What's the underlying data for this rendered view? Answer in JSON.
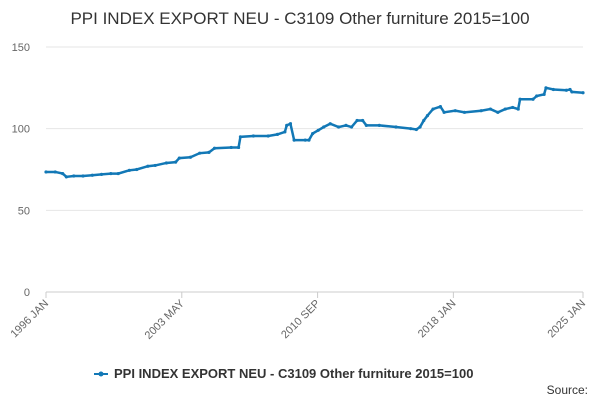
{
  "chart_data": {
    "type": "line",
    "title": "PPI INDEX EXPORT NEU - C3109 Other furniture 2015=100",
    "source": "Source:",
    "x": [
      1996.0,
      1996.5,
      1996.9,
      1997.1,
      1997.5,
      1998.0,
      1998.5,
      1999.0,
      1999.5,
      1999.9,
      2000.5,
      2000.9,
      2001.5,
      2001.9,
      2002.5,
      2003.0,
      2003.2,
      2003.8,
      2004.3,
      2004.8,
      2005.1,
      2006.0,
      2006.4,
      2006.5,
      2007.2,
      2008.0,
      2008.5,
      2008.9,
      2009.0,
      2009.2,
      2009.4,
      2010.0,
      2010.2,
      2010.4,
      2010.7,
      2011.0,
      2011.35,
      2011.8,
      2012.2,
      2012.5,
      2012.8,
      2013.1,
      2013.3,
      2014.0,
      2014.9,
      2015.7,
      2016.0,
      2016.2,
      2016.4,
      2016.6,
      2016.9,
      2017.3,
      2017.5,
      2018.1,
      2018.6,
      2019.5,
      2020.0,
      2020.4,
      2020.8,
      2021.2,
      2021.5,
      2021.6,
      2022.3,
      2022.5,
      2022.9,
      2023.0,
      2023.4,
      2024.1,
      2024.3,
      2024.4,
      2025.0
    ],
    "series": [
      {
        "name": "PPI INDEX EXPORT NEU - C3109 Other furniture 2015=100",
        "color": "#1278b6",
        "values": [
          73.5,
          73.5,
          72.5,
          70.5,
          71,
          71,
          71.5,
          72,
          72.5,
          72.5,
          74.5,
          75,
          77,
          77.5,
          79,
          79.5,
          82,
          82.5,
          85,
          85.5,
          88,
          88.5,
          88.5,
          95,
          95.5,
          95.5,
          96.5,
          98,
          102,
          103,
          93,
          93,
          93,
          97,
          99,
          101,
          103,
          101,
          102,
          101,
          105,
          105,
          102,
          102,
          101,
          100,
          99.5,
          101,
          105,
          108,
          112,
          113.5,
          110,
          111,
          110,
          111,
          112,
          110,
          112,
          113,
          112,
          118,
          118,
          120,
          121,
          125,
          124,
          123.5,
          124,
          122.5,
          122
        ]
      }
    ],
    "xlim": [
      1996,
      2025
    ],
    "xticks": [
      {
        "value": 1996,
        "label": "1996 JAN"
      },
      {
        "value": 2003.333,
        "label": "2003 MAY"
      },
      {
        "value": 2010.667,
        "label": "2010 SEP"
      },
      {
        "value": 2018,
        "label": "2018 JAN"
      },
      {
        "value": 2025,
        "label": "2025 JAN"
      }
    ],
    "ylim": [
      0,
      150
    ],
    "yticks": [
      0,
      50,
      100,
      150
    ],
    "grid": true,
    "legend": "bottom"
  }
}
